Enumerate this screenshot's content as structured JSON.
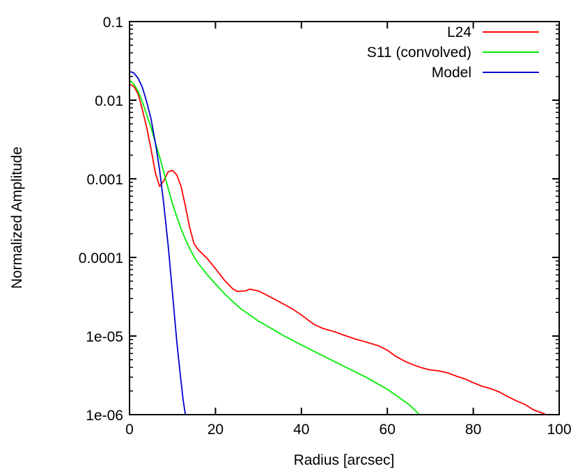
{
  "chart_data": {
    "type": "line",
    "title": "",
    "xlabel": "Radius [arcsec]",
    "ylabel": "Normalized Amplitude",
    "xlim": [
      0,
      100
    ],
    "ylim": [
      1e-06,
      0.1
    ],
    "yscale": "log",
    "x_ticks": [
      0,
      20,
      40,
      60,
      80,
      100
    ],
    "x_tick_labels": [
      "0",
      "20",
      "40",
      "60",
      "80",
      "100"
    ],
    "y_ticks": [
      1e-06,
      1e-05,
      0.0001,
      0.001,
      0.01,
      0.1
    ],
    "y_tick_labels": [
      "1e-06",
      "1e-05",
      "0.0001",
      "0.001",
      "0.01",
      "0.1"
    ],
    "grid": false,
    "legend_position": "top-right",
    "series": [
      {
        "name": "L24",
        "color": "#ff0000",
        "points": [
          [
            0,
            0.016
          ],
          [
            1,
            0.015
          ],
          [
            2,
            0.012
          ],
          [
            3,
            0.0075
          ],
          [
            4,
            0.0045
          ],
          [
            5,
            0.0024
          ],
          [
            6,
            0.0012
          ],
          [
            7,
            0.0008
          ],
          [
            8,
            0.00095
          ],
          [
            9,
            0.00123
          ],
          [
            10,
            0.00128
          ],
          [
            11,
            0.00112
          ],
          [
            12,
            0.0008
          ],
          [
            13,
            0.00045
          ],
          [
            14,
            0.00024
          ],
          [
            15,
            0.00015
          ],
          [
            16,
            0.000125
          ],
          [
            18,
            9.8e-05
          ],
          [
            20,
            7.2e-05
          ],
          [
            22,
            5.2e-05
          ],
          [
            24,
            4e-05
          ],
          [
            25,
            3.7e-05
          ],
          [
            27,
            3.75e-05
          ],
          [
            28,
            3.95e-05
          ],
          [
            30,
            3.75e-05
          ],
          [
            32,
            3.3e-05
          ],
          [
            35,
            2.7e-05
          ],
          [
            38,
            2.2e-05
          ],
          [
            40,
            1.85e-05
          ],
          [
            43,
            1.4e-05
          ],
          [
            45,
            1.25e-05
          ],
          [
            48,
            1.12e-05
          ],
          [
            50,
            1.02e-05
          ],
          [
            53,
            9e-06
          ],
          [
            55,
            8.4e-06
          ],
          [
            58,
            7.5e-06
          ],
          [
            60,
            6.6e-06
          ],
          [
            62,
            5.5e-06
          ],
          [
            64,
            4.8e-06
          ],
          [
            66,
            4.3e-06
          ],
          [
            68,
            3.95e-06
          ],
          [
            70,
            3.7e-06
          ],
          [
            72,
            3.6e-06
          ],
          [
            74,
            3.4e-06
          ],
          [
            76,
            3.1e-06
          ],
          [
            78,
            2.85e-06
          ],
          [
            80,
            2.55e-06
          ],
          [
            82,
            2.3e-06
          ],
          [
            84,
            2.15e-06
          ],
          [
            86,
            1.95e-06
          ],
          [
            88,
            1.7e-06
          ],
          [
            90,
            1.5e-06
          ],
          [
            92,
            1.35e-06
          ],
          [
            94,
            1.15e-06
          ],
          [
            96,
            1.05e-06
          ],
          [
            97,
            1e-06
          ]
        ]
      },
      {
        "name": "S11 (convolved)",
        "color": "#00ee00",
        "points": [
          [
            0,
            0.018
          ],
          [
            1,
            0.016
          ],
          [
            2,
            0.013
          ],
          [
            3,
            0.0095
          ],
          [
            4,
            0.0065
          ],
          [
            5,
            0.0045
          ],
          [
            6,
            0.0029
          ],
          [
            7,
            0.0019
          ],
          [
            8,
            0.0012
          ],
          [
            9,
            0.00075
          ],
          [
            10,
            0.00048
          ],
          [
            11,
            0.00033
          ],
          [
            12,
            0.00023
          ],
          [
            13,
            0.00017
          ],
          [
            14,
            0.00013
          ],
          [
            15,
            0.000102
          ],
          [
            16,
            8.4e-05
          ],
          [
            18,
            6.1e-05
          ],
          [
            20,
            4.6e-05
          ],
          [
            22,
            3.5e-05
          ],
          [
            24,
            2.75e-05
          ],
          [
            26,
            2.2e-05
          ],
          [
            28,
            1.85e-05
          ],
          [
            30,
            1.55e-05
          ],
          [
            33,
            1.25e-05
          ],
          [
            36,
            1e-05
          ],
          [
            40,
            7.7e-06
          ],
          [
            45,
            5.6e-06
          ],
          [
            50,
            4.1e-06
          ],
          [
            55,
            3e-06
          ],
          [
            60,
            2.1e-06
          ],
          [
            65,
            1.35e-06
          ],
          [
            67.5,
            1e-06
          ]
        ]
      },
      {
        "name": "Model",
        "color": "#0000cc",
        "points": [
          [
            0,
            0.023
          ],
          [
            0.5,
            0.0228
          ],
          [
            1,
            0.0222
          ],
          [
            2,
            0.019
          ],
          [
            3,
            0.0145
          ],
          [
            4,
            0.0095
          ],
          [
            5,
            0.0058
          ],
          [
            6,
            0.0029
          ],
          [
            7,
            0.0013
          ],
          [
            8,
            0.00046
          ],
          [
            9,
            0.00014
          ],
          [
            10,
            3.5e-05
          ],
          [
            11,
            8.5e-06
          ],
          [
            12,
            2.6e-06
          ],
          [
            12.5,
            1.5e-06
          ],
          [
            13,
            1e-06
          ]
        ]
      }
    ]
  }
}
